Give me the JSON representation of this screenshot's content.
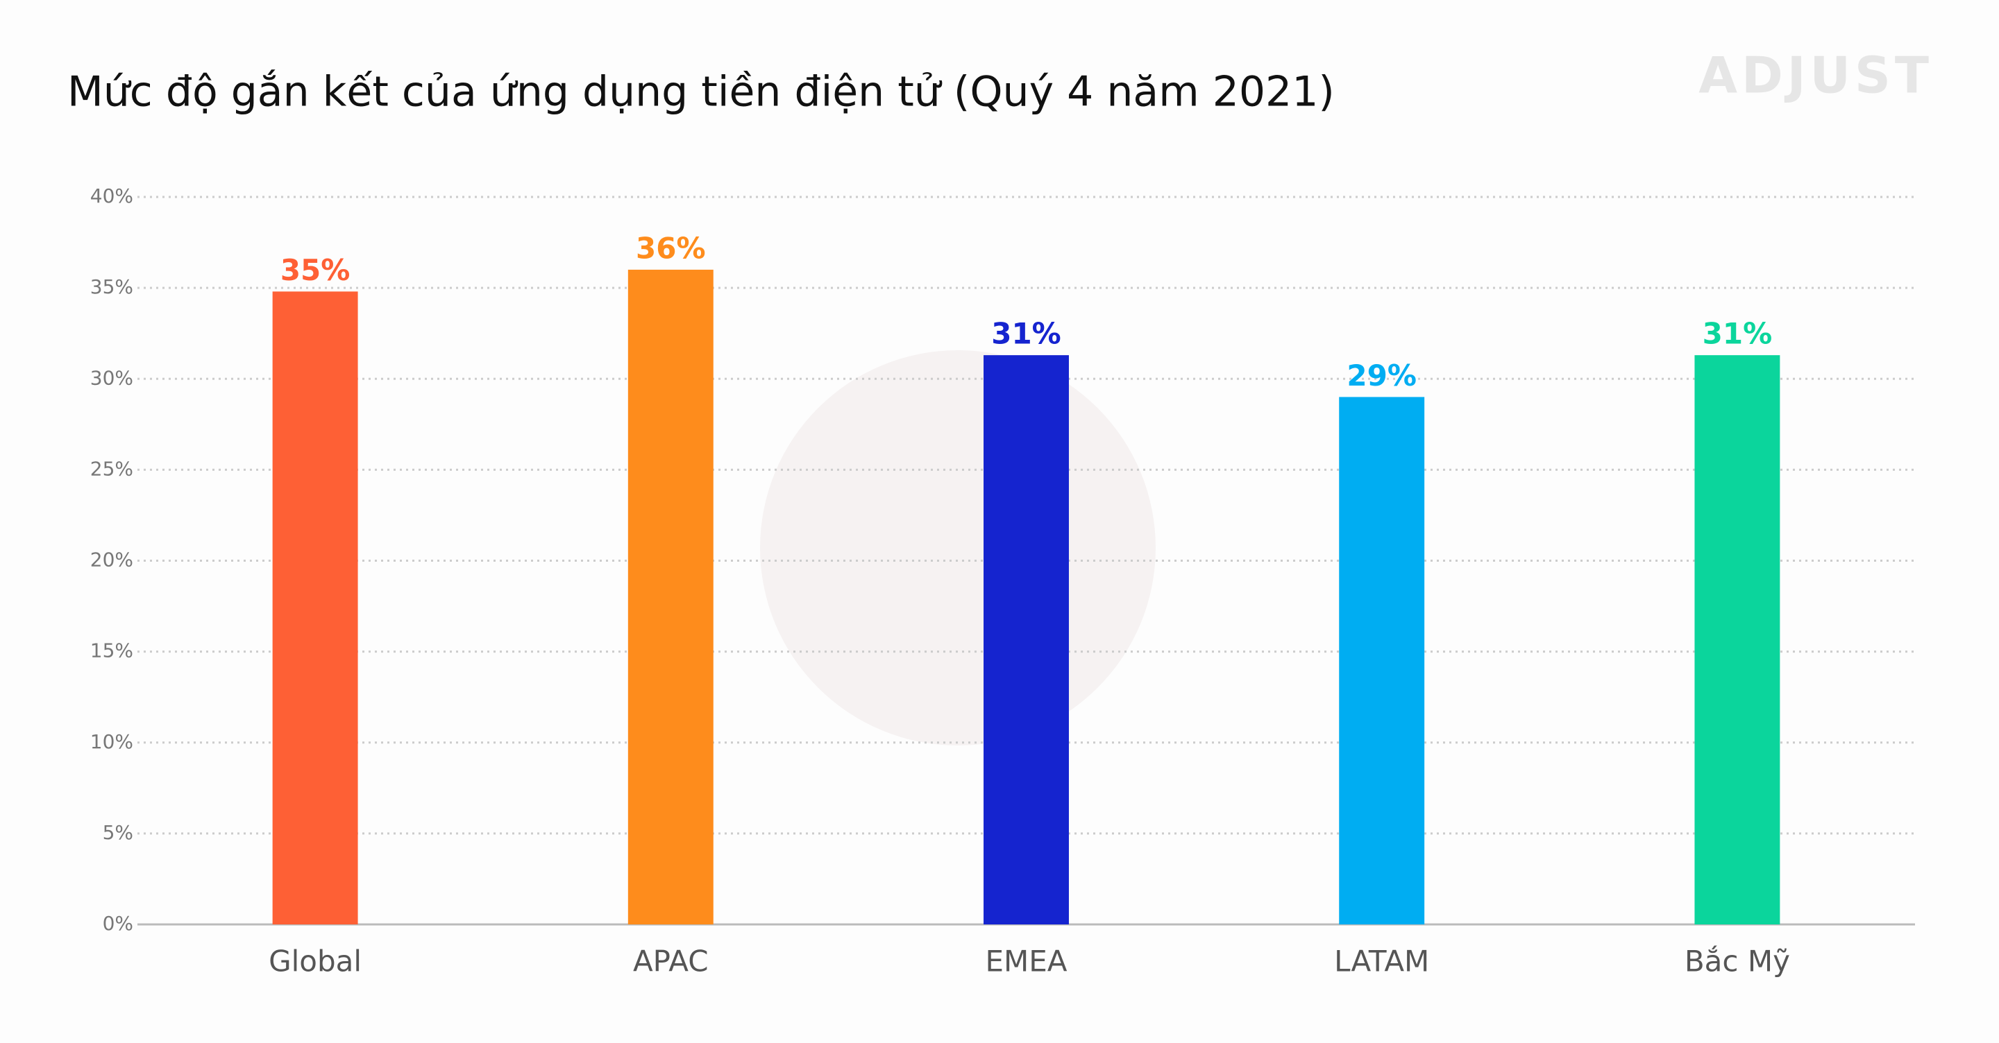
{
  "chart_data": {
    "type": "bar",
    "title": "Mức độ gắn kết của ứng dụng tiền điện tử (Quý 4 năm 2021)",
    "logo": "ADJUST",
    "categories": [
      "Global",
      "APAC",
      "EMEA",
      "LATAM",
      "Bắc Mỹ"
    ],
    "values": [
      34.8,
      36,
      31.3,
      29,
      31.3
    ],
    "value_labels": [
      "35%",
      "36%",
      "31%",
      "29%",
      "31%"
    ],
    "colors": [
      "#fe6035",
      "#fe8c1c",
      "#1524cf",
      "#00adf2",
      "#0bd59c"
    ],
    "ylim": [
      0,
      40
    ],
    "yticks": [
      {
        "value": 0,
        "label": "0%"
      },
      {
        "value": 5,
        "label": "5%"
      },
      {
        "value": 10,
        "label": "10%"
      },
      {
        "value": 15,
        "label": "15%"
      },
      {
        "value": 20,
        "label": "20%"
      },
      {
        "value": 25,
        "label": "25%"
      },
      {
        "value": 30,
        "label": "30%"
      },
      {
        "value": 35,
        "label": "35%"
      },
      {
        "value": 40,
        "label": "40%"
      }
    ],
    "grid": true
  }
}
